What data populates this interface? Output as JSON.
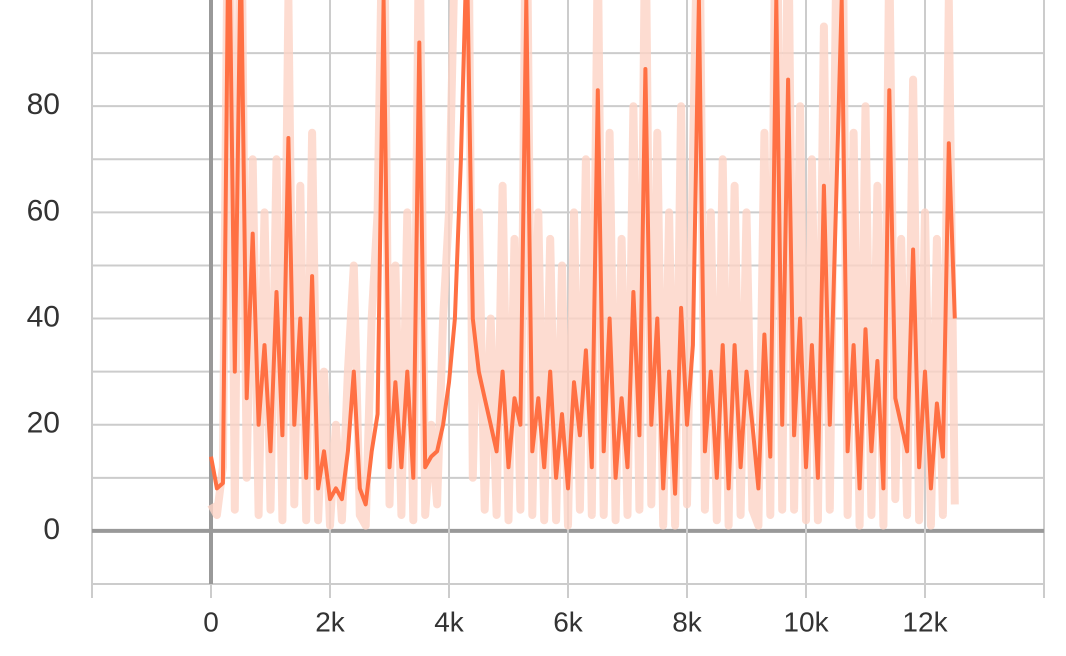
{
  "chart_data": {
    "type": "line",
    "x": [
      0,
      100,
      200,
      300,
      400,
      500,
      600,
      700,
      800,
      900,
      1000,
      1100,
      1200,
      1300,
      1400,
      1500,
      1600,
      1700,
      1800,
      1900,
      2000,
      2100,
      2200,
      2300,
      2400,
      2500,
      2600,
      2700,
      2800,
      2900,
      3000,
      3100,
      3200,
      3300,
      3400,
      3500,
      3600,
      3700,
      3800,
      3900,
      4000,
      4100,
      4200,
      4300,
      4400,
      4500,
      4600,
      4700,
      4800,
      4900,
      5000,
      5100,
      5200,
      5300,
      5400,
      5500,
      5600,
      5700,
      5800,
      5900,
      6000,
      6100,
      6200,
      6300,
      6400,
      6500,
      6600,
      6700,
      6800,
      6900,
      7000,
      7100,
      7200,
      7300,
      7400,
      7500,
      7600,
      7700,
      7800,
      7900,
      8000,
      8100,
      8200,
      8300,
      8400,
      8500,
      8600,
      8700,
      8800,
      8900,
      9000,
      9100,
      9200,
      9300,
      9400,
      9500,
      9600,
      9700,
      9800,
      9900,
      10000,
      10100,
      10200,
      10300,
      10400,
      10500,
      10600,
      10700,
      10800,
      10900,
      11000,
      11100,
      11200,
      11300,
      11400,
      11500,
      11600,
      11700,
      11800,
      11900,
      12000,
      12100,
      12200,
      12300,
      12400,
      12500
    ],
    "series": [
      {
        "name": "raw",
        "color": "#fcd3c5",
        "values": [
          5,
          3,
          12,
          140,
          4,
          130,
          10,
          70,
          3,
          60,
          4,
          70,
          2,
          100,
          5,
          65,
          2,
          75,
          2,
          30,
          1,
          20,
          2,
          30,
          50,
          3,
          1,
          40,
          60,
          130,
          5,
          50,
          3,
          60,
          2,
          120,
          3,
          20,
          5,
          40,
          60,
          110,
          150,
          160,
          10,
          60,
          4,
          40,
          3,
          65,
          2,
          55,
          4,
          130,
          3,
          60,
          2,
          55,
          2,
          50,
          1,
          60,
          4,
          70,
          3,
          110,
          3,
          75,
          2,
          55,
          3,
          80,
          4,
          120,
          5,
          75,
          1,
          60,
          1,
          80,
          5,
          70,
          130,
          4,
          60,
          2,
          70,
          1,
          65,
          3,
          60,
          4,
          1,
          75,
          3,
          140,
          4,
          120,
          4,
          80,
          2,
          70,
          2,
          95,
          4,
          100,
          140,
          3,
          75,
          1,
          80,
          3,
          65,
          1,
          110,
          6,
          55,
          3,
          85,
          2,
          60,
          1,
          55,
          3,
          100,
          5
        ]
      },
      {
        "name": "smoothed",
        "color": "#ff7043",
        "values": [
          14,
          8,
          9,
          120,
          30,
          110,
          25,
          56,
          20,
          35,
          15,
          45,
          18,
          74,
          20,
          40,
          10,
          48,
          8,
          15,
          6,
          8,
          6,
          15,
          30,
          8,
          5,
          15,
          22,
          100,
          12,
          28,
          12,
          30,
          10,
          92,
          12,
          14,
          15,
          20,
          28,
          40,
          70,
          110,
          40,
          30,
          25,
          20,
          15,
          30,
          12,
          25,
          20,
          100,
          15,
          25,
          12,
          30,
          10,
          22,
          8,
          28,
          18,
          34,
          12,
          83,
          15,
          40,
          10,
          25,
          12,
          45,
          18,
          87,
          20,
          40,
          8,
          30,
          7,
          42,
          20,
          35,
          100,
          15,
          30,
          10,
          35,
          8,
          35,
          12,
          30,
          20,
          8,
          37,
          14,
          100,
          20,
          85,
          18,
          40,
          12,
          35,
          10,
          65,
          20,
          60,
          100,
          15,
          35,
          8,
          38,
          15,
          32,
          8,
          83,
          25,
          20,
          15,
          53,
          12,
          30,
          8,
          24,
          14,
          73,
          40
        ]
      }
    ],
    "xlim": [
      -2000,
      14000
    ],
    "xticks": [
      0,
      {
        "value": 2000,
        "label": "2k"
      },
      {
        "value": 4000,
        "label": "4k"
      },
      {
        "value": 6000,
        "label": "6k"
      },
      {
        "value": 8000,
        "label": "8k"
      },
      {
        "value": 10000,
        "label": "10k"
      },
      {
        "value": 12000,
        "label": "12k"
      }
    ],
    "xgrid": [
      -2000,
      14000
    ],
    "ylim": [
      -10,
      100
    ],
    "yticks": [
      0,
      20,
      40,
      60,
      80
    ],
    "yminor": [
      -10,
      10,
      30,
      50,
      70,
      90
    ],
    "grid": true
  }
}
